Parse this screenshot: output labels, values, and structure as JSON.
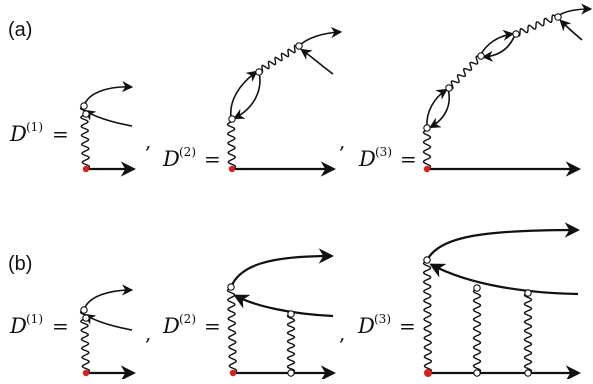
{
  "panels": [
    {
      "label": "(a)",
      "items": [
        {
          "symbol": "D",
          "superscript": "(1)",
          "equals": "=",
          "separator": ","
        },
        {
          "symbol": "D",
          "superscript": "(2)",
          "equals": "=",
          "separator": ","
        },
        {
          "symbol": "D",
          "superscript": "(3)",
          "equals": "=",
          "separator": ""
        }
      ]
    },
    {
      "label": "(b)",
      "items": [
        {
          "symbol": "D",
          "superscript": "(1)",
          "equals": "=",
          "separator": ","
        },
        {
          "symbol": "D",
          "superscript": "(2)",
          "equals": "=",
          "separator": ","
        },
        {
          "symbol": "D",
          "superscript": "(3)",
          "equals": "=",
          "separator": ""
        }
      ]
    }
  ],
  "colors": {
    "source_vertex": "#d62020",
    "ink": "#111111",
    "vertex_fill": "#ffffff"
  }
}
